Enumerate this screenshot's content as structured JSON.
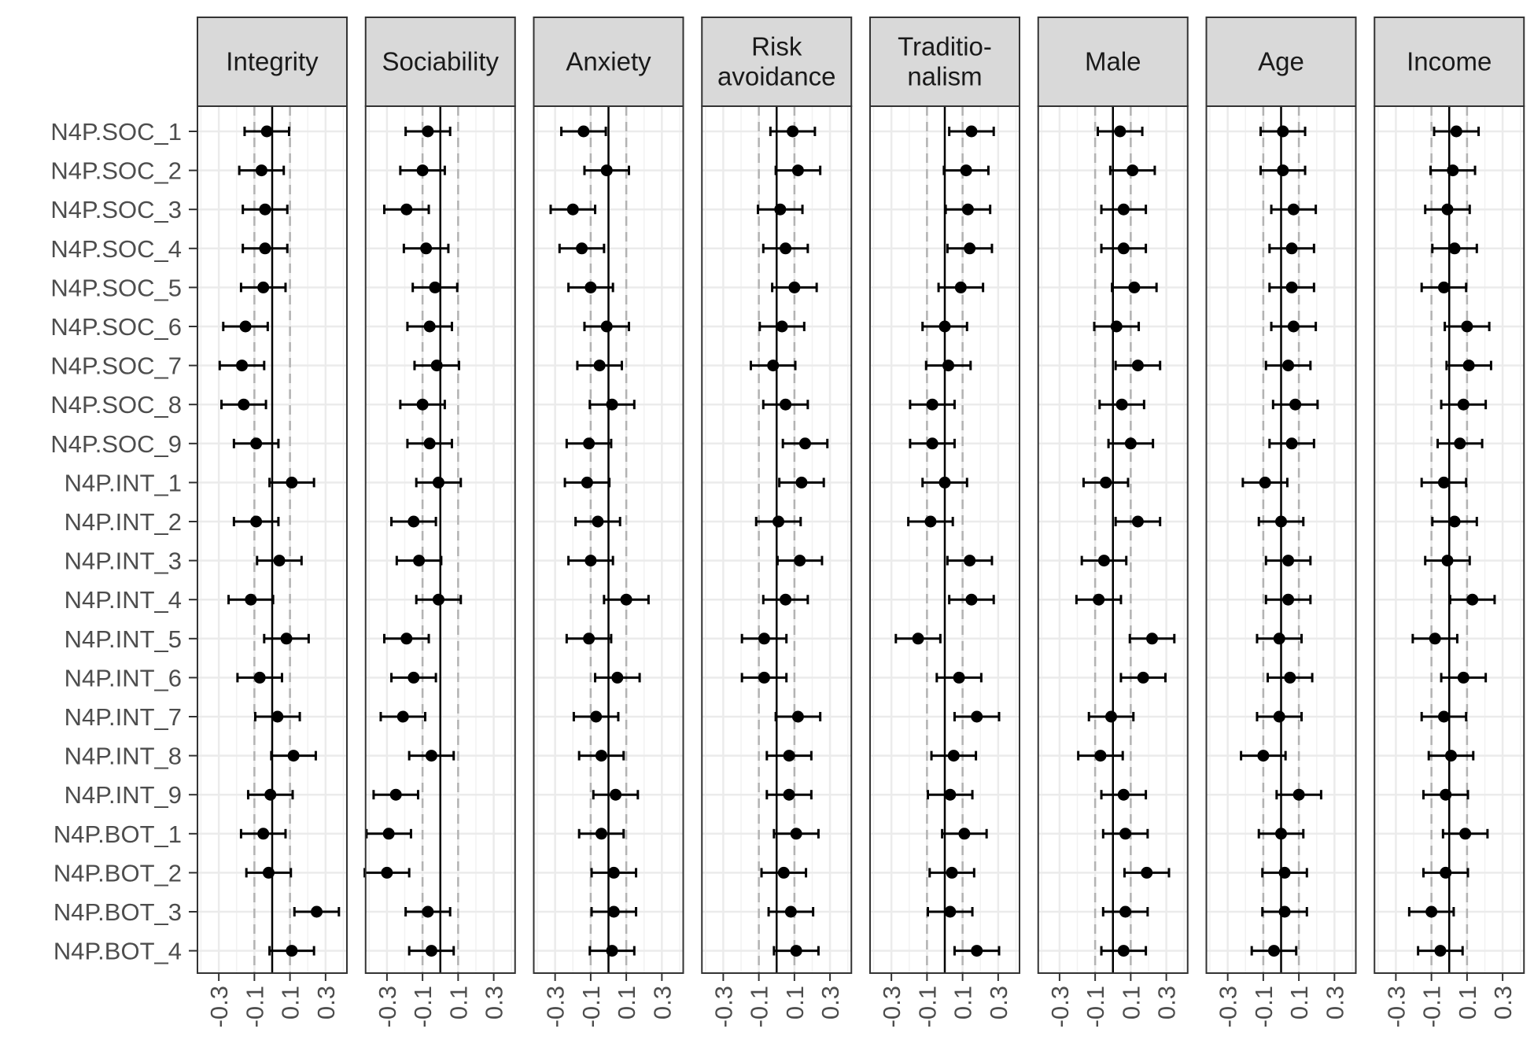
{
  "chart_data": {
    "type": "scatter",
    "subtype": "coefficient dot-and-whisker plot, faceted",
    "title": "",
    "xlabel": "",
    "ylabel": "",
    "xlim": [
      -0.42,
      0.42
    ],
    "x_ticks": [
      -0.3,
      -0.1,
      0.1,
      0.3
    ],
    "x_tick_labels": [
      "-0.3",
      "-0.1",
      "0.1",
      "0.3"
    ],
    "reference_lines": {
      "solid": 0,
      "dashed": [
        -0.1,
        0.1
      ]
    },
    "grid": true,
    "legend": "none",
    "colors": {
      "point": "#000000",
      "panel_border": "#333333",
      "strip_fill": "#d9d9d9",
      "grid": "#ebebeb",
      "dashed": "#b3b3b3",
      "text": "#4d4d4d"
    },
    "categories": [
      "N4P.SOC_1",
      "N4P.SOC_2",
      "N4P.SOC_3",
      "N4P.SOC_4",
      "N4P.SOC_5",
      "N4P.SOC_6",
      "N4P.SOC_7",
      "N4P.SOC_8",
      "N4P.SOC_9",
      "N4P.INT_1",
      "N4P.INT_2",
      "N4P.INT_3",
      "N4P.INT_4",
      "N4P.INT_5",
      "N4P.INT_6",
      "N4P.INT_7",
      "N4P.INT_8",
      "N4P.INT_9",
      "N4P.BOT_1",
      "N4P.BOT_2",
      "N4P.BOT_3",
      "N4P.BOT_4"
    ],
    "facets": [
      {
        "label": [
          "Integrity"
        ],
        "half_width": 0.125,
        "estimates": [
          -0.03,
          -0.06,
          -0.04,
          -0.04,
          -0.05,
          -0.15,
          -0.17,
          -0.16,
          -0.09,
          0.11,
          -0.09,
          0.04,
          -0.12,
          0.08,
          -0.07,
          0.03,
          0.12,
          -0.01,
          -0.05,
          -0.02,
          0.25,
          0.11
        ]
      },
      {
        "label": [
          "Sociability"
        ],
        "half_width": 0.125,
        "estimates": [
          -0.07,
          -0.1,
          -0.19,
          -0.08,
          -0.03,
          -0.06,
          -0.02,
          -0.1,
          -0.06,
          -0.01,
          -0.15,
          -0.12,
          -0.01,
          -0.19,
          -0.15,
          -0.21,
          -0.05,
          -0.25,
          -0.29,
          -0.3,
          -0.07,
          -0.05
        ]
      },
      {
        "label": [
          "Anxiety"
        ],
        "half_width": 0.125,
        "estimates": [
          -0.14,
          -0.01,
          -0.2,
          -0.15,
          -0.1,
          -0.01,
          -0.05,
          0.02,
          -0.11,
          -0.12,
          -0.06,
          -0.1,
          0.1,
          -0.11,
          0.05,
          -0.07,
          -0.04,
          0.04,
          -0.04,
          0.03,
          0.03,
          0.02
        ]
      },
      {
        "label": [
          "Risk",
          "avoidance"
        ],
        "half_width": 0.125,
        "estimates": [
          0.09,
          0.12,
          0.02,
          0.05,
          0.1,
          0.03,
          -0.02,
          0.05,
          0.16,
          0.14,
          0.01,
          0.13,
          0.05,
          -0.07,
          -0.07,
          0.12,
          0.07,
          0.07,
          0.11,
          0.04,
          0.08,
          0.11
        ]
      },
      {
        "label": [
          "Traditio-",
          "nalism"
        ],
        "half_width": 0.125,
        "estimates": [
          0.15,
          0.12,
          0.13,
          0.14,
          0.09,
          0.0,
          0.02,
          -0.07,
          -0.07,
          0.0,
          -0.08,
          0.14,
          0.15,
          -0.15,
          0.08,
          0.18,
          0.05,
          0.03,
          0.11,
          0.04,
          0.03,
          0.18
        ]
      },
      {
        "label": [
          "Male"
        ],
        "half_width": 0.125,
        "estimates": [
          0.04,
          0.11,
          0.06,
          0.06,
          0.12,
          0.02,
          0.14,
          0.05,
          0.1,
          -0.04,
          0.14,
          -0.05,
          -0.08,
          0.22,
          0.17,
          -0.01,
          -0.07,
          0.06,
          0.07,
          0.19,
          0.07,
          0.06
        ]
      },
      {
        "label": [
          "Age"
        ],
        "half_width": 0.125,
        "estimates": [
          0.01,
          0.01,
          0.07,
          0.06,
          0.06,
          0.07,
          0.04,
          0.08,
          0.06,
          -0.09,
          0.0,
          0.04,
          0.04,
          -0.01,
          0.05,
          -0.01,
          -0.1,
          0.1,
          0.0,
          0.02,
          0.02,
          -0.04
        ]
      },
      {
        "label": [
          "Income"
        ],
        "half_width": 0.125,
        "estimates": [
          0.04,
          0.02,
          -0.01,
          0.03,
          -0.03,
          0.1,
          0.11,
          0.08,
          0.06,
          -0.03,
          0.03,
          -0.01,
          0.13,
          -0.08,
          0.08,
          -0.03,
          0.01,
          -0.02,
          0.09,
          -0.02,
          -0.1,
          -0.05
        ]
      }
    ]
  }
}
